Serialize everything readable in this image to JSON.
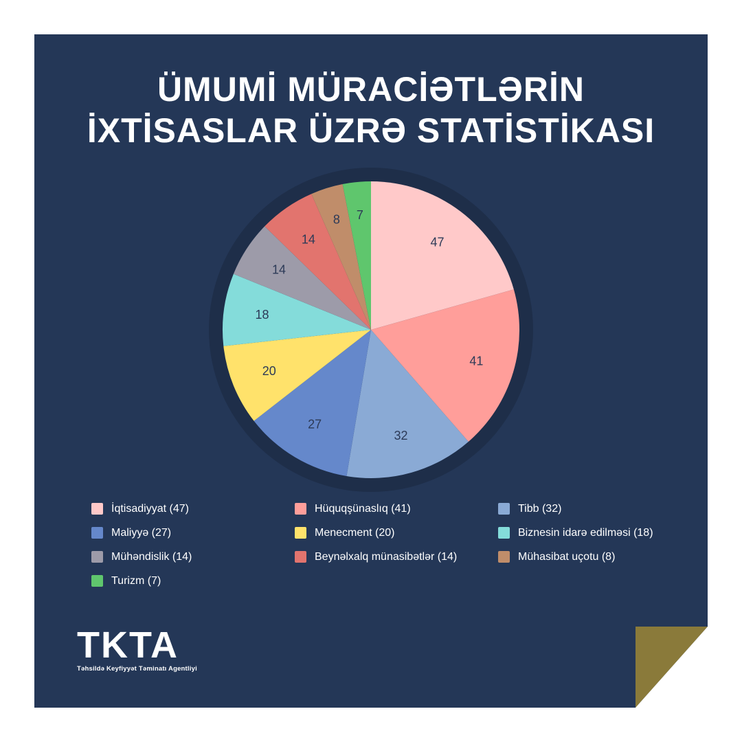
{
  "title": {
    "line1": "ÜMUMİ MÜRACİƏTLƏRİN",
    "line2": "İXTİSASLAR ÜZRƏ STATİSTİKASI"
  },
  "chart_data": {
    "type": "pie",
    "categories": [
      "İqtisadiyyat",
      "Hüquqşünaslıq",
      "Tibb",
      "Maliyyə",
      "Menecment",
      "Biznesin idarə edilməsi",
      "Mühəndislik",
      "Beynəlxalq münasibətlər",
      "Mühasibat uçotu",
      "Turizm"
    ],
    "values": [
      47,
      41,
      32,
      27,
      20,
      18,
      14,
      14,
      8,
      7
    ],
    "colors": [
      "#ffc9c9",
      "#ff9e9a",
      "#8aaad5",
      "#6588cb",
      "#ffe26b",
      "#84dcda",
      "#9d9ba9",
      "#e2746e",
      "#c08d6a",
      "#5fc66d"
    ],
    "legend_labels": [
      "İqtisadiyyat (47)",
      "Hüquqşünaslıq (41)",
      "Tibb (32)",
      "Maliyyə (27)",
      "Menecment (20)",
      "Biznesin idarə edilməsi (18)",
      "Mühəndislik (14)",
      "Beynəlxalq münasibətlər (14)",
      "Mühasibat uçotu (8)",
      "Turizm (7)"
    ],
    "legend_placement": "bottom",
    "start": "12 o'clock",
    "direction": "clockwise"
  },
  "brand": {
    "logo": "TKTA",
    "subtitle": "Təhsildə Keyfiyyət Təminatı Agentliyi"
  },
  "colors": {
    "background": "#243757",
    "ring": "#1e2e49",
    "label_text": "#2c3a57",
    "corner": "#8a7a3a"
  }
}
